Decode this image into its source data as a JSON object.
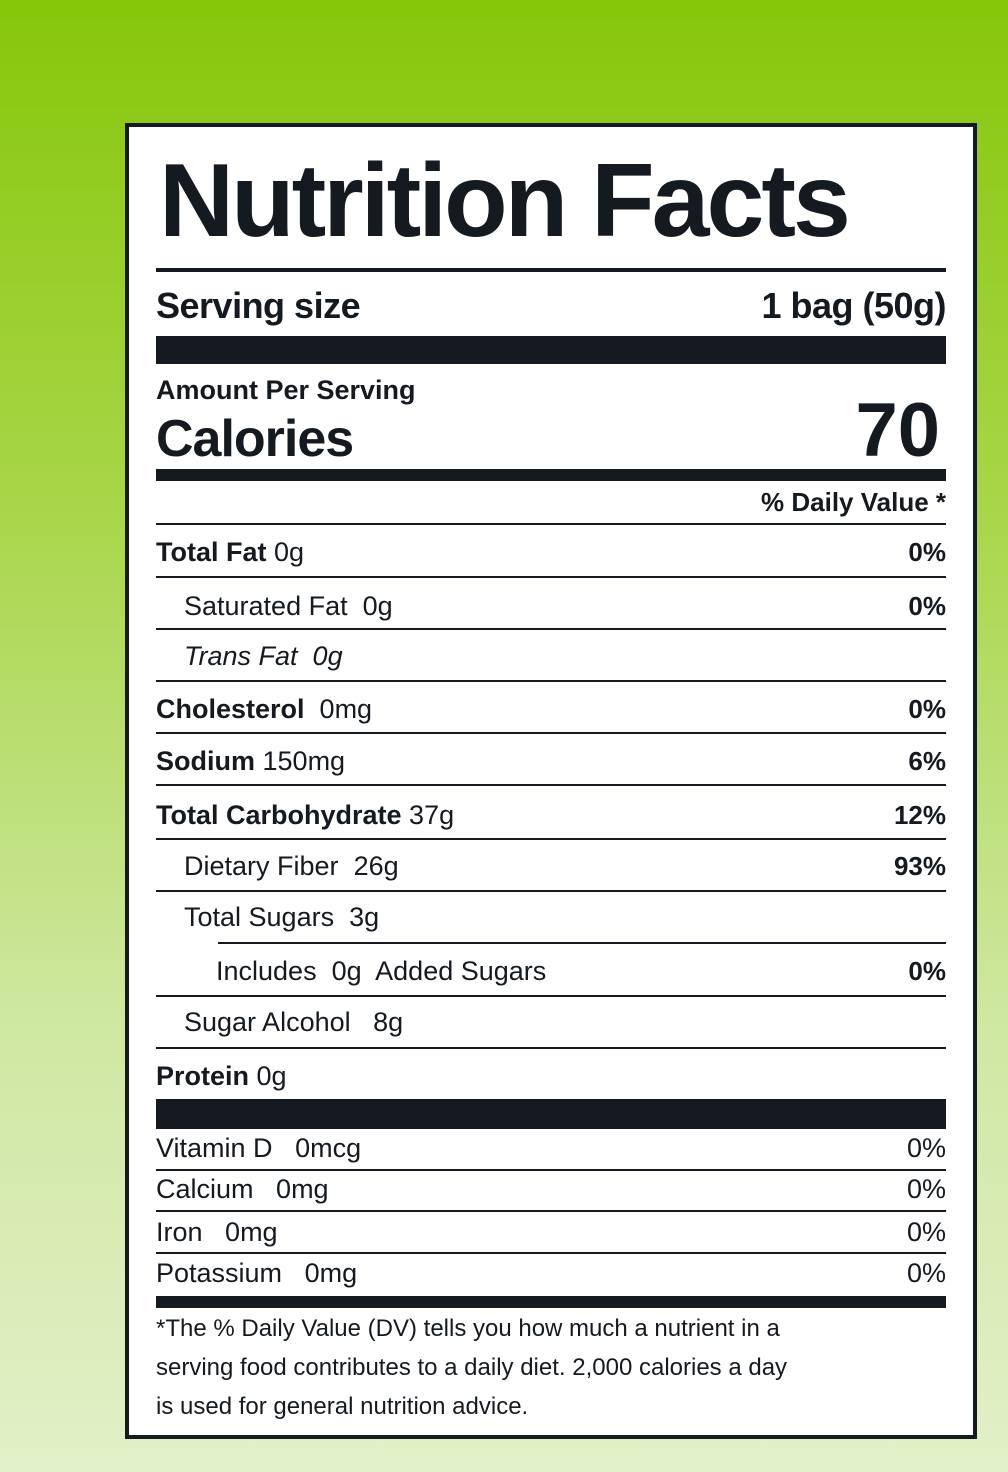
{
  "title": "Nutrition Facts",
  "serving": {
    "label": "Serving size",
    "value": "1 bag (50g)"
  },
  "amount_per_serving": "Amount Per Serving",
  "calories": {
    "label": "Calories",
    "value": "70"
  },
  "daily_value_header": "% Daily Value *",
  "nutrients": {
    "total_fat": {
      "label": "Total Fat",
      "amount": "0g",
      "dv": "0%"
    },
    "saturated_fat": {
      "label": "Saturated Fat",
      "amount": "0g",
      "dv": "0%"
    },
    "trans_fat": {
      "label": "Trans Fat",
      "amount": "0g"
    },
    "cholesterol": {
      "label": "Cholesterol",
      "amount": "0mg",
      "dv": "0%"
    },
    "sodium": {
      "label": "Sodium",
      "amount": "150mg",
      "dv": "6%"
    },
    "total_carbohydrate": {
      "label": "Total Carbohydrate",
      "amount": "37g",
      "dv": "12%"
    },
    "dietary_fiber": {
      "label": "Dietary Fiber",
      "amount": "26g",
      "dv": "93%"
    },
    "total_sugars": {
      "label": "Total Sugars",
      "amount": "3g"
    },
    "added_sugars": {
      "label_pre": "Includes",
      "amount": "0g",
      "label_post": "Added Sugars",
      "dv": "0%"
    },
    "sugar_alcohol": {
      "label": "Sugar Alcohol",
      "amount": "8g"
    },
    "protein": {
      "label": "Protein",
      "amount": "0g"
    }
  },
  "vitamins": [
    {
      "label": "Vitamin D",
      "amount": "0mcg",
      "dv": "0%"
    },
    {
      "label": "Calcium",
      "amount": "0mg",
      "dv": "0%"
    },
    {
      "label": "Iron",
      "amount": "0mg",
      "dv": "0%"
    },
    {
      "label": "Potassium",
      "amount": "0mg",
      "dv": "0%"
    }
  ],
  "footnote": [
    "*The % Daily Value (DV) tells you how much a nutrient in a",
    "serving food contributes to a daily diet. 2,000 calories a day",
    "is used for general nutrition advice."
  ],
  "colors": {
    "ink": "#141a1f",
    "bg_top": "#86c70a",
    "bg_bottom": "#e2f0c8"
  }
}
